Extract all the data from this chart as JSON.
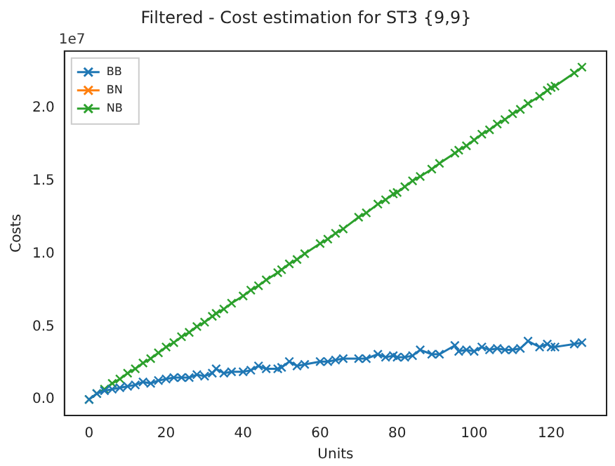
{
  "chart_data": {
    "type": "line",
    "title": "Filtered - Cost estimation for ST3 {9,9}",
    "xlabel": "Units",
    "ylabel": "Costs",
    "annotations": [
      "1e7"
    ],
    "x": [
      0,
      2,
      4,
      6,
      8,
      10,
      12,
      14,
      16,
      18,
      20,
      22,
      24,
      26,
      28,
      30,
      32,
      33,
      35,
      37,
      40,
      42,
      44,
      46,
      49,
      50,
      52,
      54,
      56,
      60,
      62,
      64,
      66,
      70,
      72,
      75,
      77,
      79,
      80,
      82,
      84,
      86,
      89,
      91,
      95,
      96,
      98,
      100,
      102,
      104,
      106,
      108,
      110,
      112,
      114,
      117,
      119,
      120,
      121,
      126,
      128
    ],
    "series": [
      {
        "name": "BB",
        "color": "#1f77b4",
        "values": [
          0,
          0.04,
          0.06,
          0.07,
          0.08,
          0.09,
          0.1,
          0.12,
          0.11,
          0.13,
          0.14,
          0.15,
          0.15,
          0.15,
          0.17,
          0.16,
          0.18,
          0.21,
          0.18,
          0.19,
          0.19,
          0.2,
          0.23,
          0.21,
          0.21,
          0.22,
          0.26,
          0.23,
          0.24,
          0.26,
          0.26,
          0.27,
          0.28,
          0.28,
          0.28,
          0.31,
          0.29,
          0.3,
          0.29,
          0.29,
          0.3,
          0.34,
          0.31,
          0.31,
          0.37,
          0.33,
          0.34,
          0.33,
          0.36,
          0.34,
          0.35,
          0.34,
          0.34,
          0.35,
          0.4,
          0.36,
          0.38,
          0.36,
          0.36,
          0.38,
          0.39
        ]
      },
      {
        "name": "BN",
        "color": "#ff7f0e",
        "values": [
          null,
          null,
          null,
          null,
          null,
          null,
          null,
          null,
          null,
          null,
          null,
          null,
          null,
          null,
          null,
          null,
          null,
          null,
          null,
          null,
          null,
          null,
          null,
          null,
          null,
          null,
          null,
          null,
          null,
          null,
          null,
          null,
          null,
          null,
          null,
          null,
          null,
          null,
          null,
          null,
          null,
          null,
          null,
          null,
          null,
          null,
          null,
          null,
          null,
          null,
          null,
          null,
          null,
          null,
          null,
          null,
          null,
          null,
          null,
          null,
          null
        ]
      },
      {
        "name": "NB",
        "color": "#2ca02c",
        "values": [
          0,
          0.04,
          0.07,
          0.11,
          0.14,
          0.18,
          0.21,
          0.25,
          0.28,
          0.32,
          0.36,
          0.39,
          0.43,
          0.46,
          0.5,
          0.53,
          0.57,
          0.59,
          0.62,
          0.66,
          0.71,
          0.75,
          0.78,
          0.82,
          0.87,
          0.89,
          0.93,
          0.96,
          1.0,
          1.07,
          1.1,
          1.14,
          1.17,
          1.25,
          1.28,
          1.34,
          1.37,
          1.41,
          1.42,
          1.46,
          1.5,
          1.53,
          1.58,
          1.62,
          1.69,
          1.71,
          1.74,
          1.78,
          1.82,
          1.85,
          1.89,
          1.92,
          1.96,
          1.99,
          2.03,
          2.08,
          2.12,
          2.14,
          2.15,
          2.24,
          2.28
        ]
      }
    ],
    "xlim": [
      -6.4,
      134.4
    ],
    "ylim": [
      -0.11,
      2.39
    ],
    "xticks": [
      0,
      20,
      40,
      60,
      80,
      100,
      120
    ],
    "yticks": [
      {
        "value": 0,
        "label": "0.0"
      },
      {
        "value": 0.5,
        "label": "0.5"
      },
      {
        "value": 1,
        "label": "1.0"
      },
      {
        "value": 1.5,
        "label": "1.5"
      },
      {
        "value": 2,
        "label": "2.0"
      }
    ],
    "legend": "top left",
    "marker": "cross",
    "line_style": "solid"
  }
}
